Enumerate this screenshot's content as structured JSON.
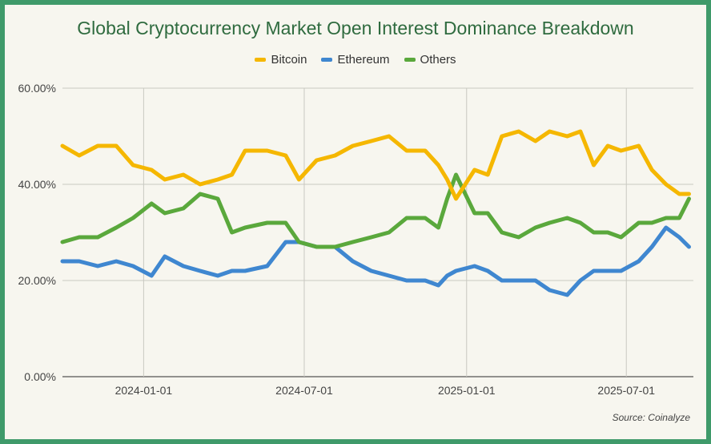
{
  "chart_data": {
    "type": "line",
    "title": "Global Cryptocurrency Market Open Interest Dominance Breakdown",
    "source": "Source: Coinalyze",
    "xlabel": "",
    "ylabel": "",
    "ylim": [
      0,
      60
    ],
    "yticks": [
      {
        "value": 0,
        "label": "0.00%"
      },
      {
        "value": 20,
        "label": "20.00%"
      },
      {
        "value": 40,
        "label": "40.00%"
      },
      {
        "value": 60,
        "label": "60.00%"
      }
    ],
    "xlim": [
      "2023-10-01",
      "2025-09-15"
    ],
    "xticks": [
      {
        "value": "2024-01-01",
        "label": "2024-01-01"
      },
      {
        "value": "2024-07-01",
        "label": "2024-07-01"
      },
      {
        "value": "2025-01-01",
        "label": "2025-01-01"
      },
      {
        "value": "2025-07-01",
        "label": "2025-07-01"
      }
    ],
    "grid": "vertical and horizontal",
    "legend_position": "top-center",
    "x": [
      "2023-10-01",
      "2023-10-20",
      "2023-11-10",
      "2023-12-01",
      "2023-12-20",
      "2024-01-10",
      "2024-01-25",
      "2024-02-15",
      "2024-03-05",
      "2024-03-25",
      "2024-04-10",
      "2024-04-25",
      "2024-05-20",
      "2024-06-10",
      "2024-06-25",
      "2024-07-15",
      "2024-08-05",
      "2024-08-25",
      "2024-09-15",
      "2024-10-05",
      "2024-10-25",
      "2024-11-15",
      "2024-11-30",
      "2024-12-10",
      "2024-12-20",
      "2025-01-10",
      "2025-01-25",
      "2025-02-10",
      "2025-03-01",
      "2025-03-20",
      "2025-04-05",
      "2025-04-25",
      "2025-05-10",
      "2025-05-25",
      "2025-06-10",
      "2025-06-25",
      "2025-07-15",
      "2025-07-30",
      "2025-08-15",
      "2025-08-30",
      "2025-09-10"
    ],
    "series": [
      {
        "name": "Bitcoin",
        "color": "#f5b700",
        "values": [
          48,
          46,
          48,
          48,
          44,
          43,
          41,
          42,
          40,
          41,
          42,
          47,
          47,
          46,
          41,
          45,
          46,
          48,
          49,
          50,
          47,
          47,
          44,
          41,
          37,
          43,
          42,
          50,
          51,
          49,
          51,
          50,
          51,
          44,
          48,
          47,
          48,
          43,
          40,
          38,
          38
        ]
      },
      {
        "name": "Ethereum",
        "color": "#3f87d0",
        "values": [
          24,
          24,
          23,
          24,
          23,
          21,
          25,
          23,
          22,
          21,
          22,
          22,
          23,
          28,
          28,
          27,
          27,
          24,
          22,
          21,
          20,
          20,
          19,
          21,
          22,
          23,
          22,
          20,
          20,
          20,
          18,
          17,
          20,
          22,
          22,
          22,
          24,
          27,
          31,
          29,
          27
        ]
      },
      {
        "name": "Others",
        "color": "#5aa83c",
        "values": [
          28,
          29,
          29,
          31,
          33,
          36,
          34,
          35,
          38,
          37,
          30,
          31,
          32,
          32,
          28,
          27,
          27,
          28,
          29,
          30,
          33,
          33,
          31,
          37,
          42,
          34,
          34,
          30,
          29,
          31,
          32,
          33,
          32,
          30,
          30,
          29,
          32,
          32,
          33,
          33,
          37
        ]
      }
    ]
  }
}
